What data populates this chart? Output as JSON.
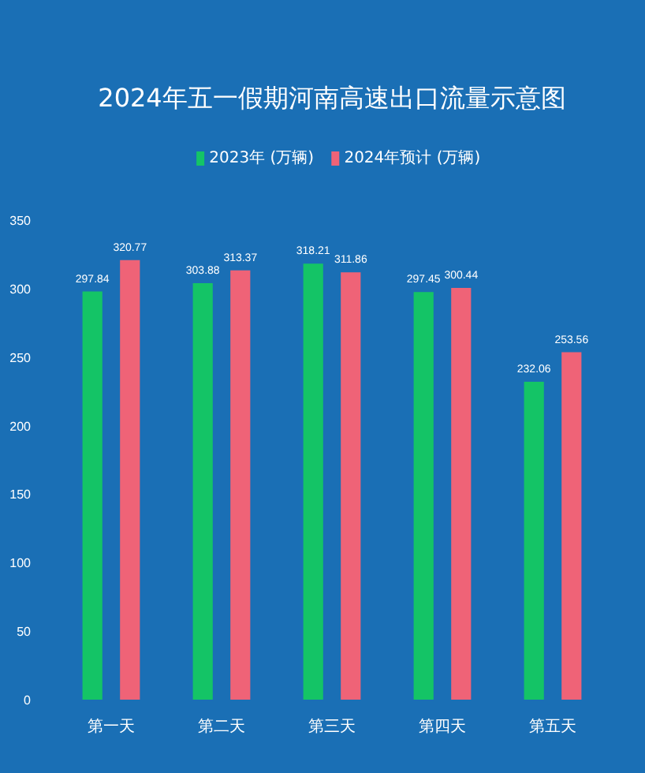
{
  "chart_data": {
    "type": "bar",
    "title": "2024年五一假期河南高速出口流量示意图",
    "categories": [
      "第一天",
      "第二天",
      "第三天",
      "第四天",
      "第五天"
    ],
    "series": [
      {
        "name": "2023年 (万辆)",
        "color": "#14c466",
        "values": [
          297.84,
          303.88,
          318.21,
          297.45,
          232.06
        ]
      },
      {
        "name": "2024年预计 (万辆)",
        "color": "#ef6377",
        "values": [
          320.77,
          313.37,
          311.86,
          300.44,
          253.56
        ]
      }
    ],
    "ylim": [
      0,
      350
    ],
    "yticks": [
      0,
      50,
      100,
      150,
      200,
      250,
      300,
      350
    ],
    "grid": false,
    "legend": "top",
    "data_labels": true
  }
}
